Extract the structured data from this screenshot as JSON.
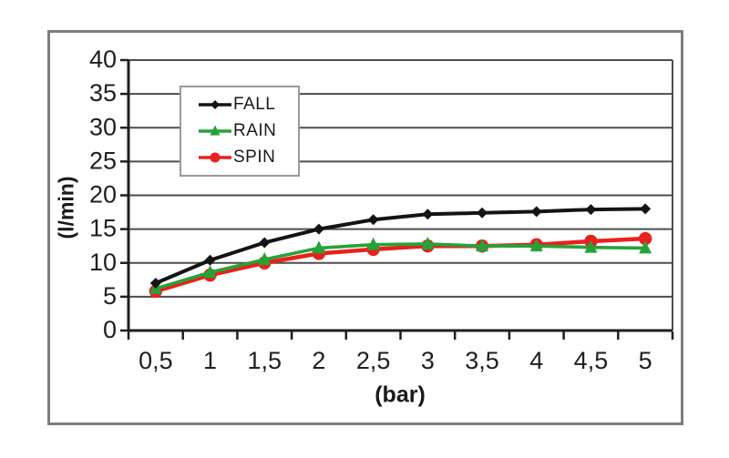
{
  "figure": {
    "background": "#ffffff",
    "frame_border_color": "#7d7d7d",
    "grid_color": "#4d4d4d",
    "axis_color": "#1f1f1f",
    "tick_label_color": "#1f1f1f",
    "legend_border_color": "#9a9a9a"
  },
  "chart_data": {
    "type": "line",
    "title": "",
    "xlabel": "(bar)",
    "ylabel": "(l/min)",
    "x": [
      0.5,
      1,
      1.5,
      2,
      2.5,
      3,
      3.5,
      4,
      4.5,
      5
    ],
    "x_tick_labels": [
      "0,5",
      "1",
      "1,5",
      "2",
      "2,5",
      "3",
      "3,5",
      "4",
      "4,5",
      "5"
    ],
    "ylim": [
      0,
      40
    ],
    "y_ticks": [
      0,
      5,
      10,
      15,
      20,
      25,
      30,
      35,
      40
    ],
    "y_tick_labels": [
      "0",
      "5",
      "10",
      "15",
      "20",
      "25",
      "30",
      "35",
      "40"
    ],
    "grid": true,
    "legend_position": "top-left-inside",
    "series": [
      {
        "name": "FALL",
        "color": "#141414",
        "marker": "diamond",
        "values": [
          7.0,
          10.4,
          13.0,
          15.0,
          16.4,
          17.2,
          17.4,
          17.6,
          17.9,
          18.0
        ]
      },
      {
        "name": "RAIN",
        "color": "#25a338",
        "marker": "triangle",
        "values": [
          6.2,
          8.6,
          10.5,
          12.2,
          12.7,
          12.8,
          12.5,
          12.5,
          12.3,
          12.2
        ]
      },
      {
        "name": "SPIN",
        "color": "#e8211d",
        "marker": "circle",
        "values": [
          5.8,
          8.2,
          10.0,
          11.4,
          12.0,
          12.5,
          12.5,
          12.7,
          13.2,
          13.6
        ]
      }
    ]
  }
}
